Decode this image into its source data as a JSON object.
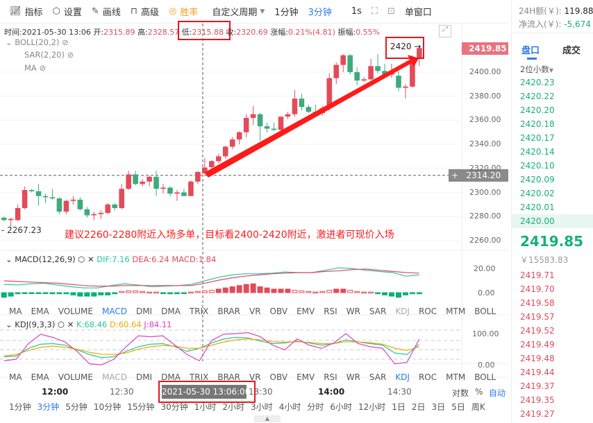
{
  "toolbar": {
    "items": [
      {
        "icon": "chart-line-icon",
        "label": "指标"
      },
      {
        "icon": "hexagon-gear-icon",
        "label": "设置"
      },
      {
        "icon": "pencil-icon",
        "label": "画线"
      },
      {
        "icon": "bag-icon",
        "label": "高级"
      },
      {
        "icon": "gauge-icon",
        "label": "胜率"
      }
    ],
    "custom_period": "自定义周期",
    "period_1": "1分钟",
    "period_3": "3分钟",
    "interval": "1s",
    "single_window": "单窗口"
  },
  "info": {
    "time_label": "时间:",
    "time": "2021-05-30 13:06",
    "open_label": "开:",
    "open": "2315.89",
    "high_label": "高:",
    "high": "2328.57",
    "low_label": "低:",
    "low": "2315.88",
    "close_label": "收:",
    "close": "2320.69",
    "change_label": "涨幅:",
    "change": "0.21%(4.81)",
    "amp_label": "振幅:",
    "amp": "0.55%"
  },
  "overlays": [
    "BOLL(20,2)",
    "SAR(2,20)",
    "MA"
  ],
  "annotation": {
    "target_label": "2420 →",
    "note": "建议2260-2280附近入场多单，目标看2400-2420附近，激进者可现价入场",
    "min_label": "- 2267.23"
  },
  "price_axis": {
    "ticks": [
      "2400.00",
      "2380.00",
      "2360.00",
      "2340.00",
      "2320.00",
      "2300.00",
      "2280.00",
      "2260.00"
    ],
    "last_price": "2419.85",
    "cross_price": "2314.20"
  },
  "colors": {
    "up": "#e24b5a",
    "down": "#3dab7d",
    "accent": "#2c7be5",
    "annotation": "#ff1a1a"
  },
  "candles": [
    [
      2279,
      2280,
      2276,
      2277
    ],
    [
      2277,
      2279,
      2270,
      2278
    ],
    [
      2277,
      2290,
      2276,
      2287
    ],
    [
      2287,
      2305,
      2286,
      2302
    ],
    [
      2302,
      2303,
      2300,
      2301
    ],
    [
      2301,
      2307,
      2289,
      2297
    ],
    [
      2297,
      2299,
      2291,
      2296
    ],
    [
      2296,
      2303,
      2294,
      2295
    ],
    [
      2295,
      2296,
      2282,
      2284
    ],
    [
      2284,
      2294,
      2282,
      2293
    ],
    [
      2293,
      2297,
      2290,
      2294
    ],
    [
      2294,
      2296,
      2285,
      2286
    ],
    [
      2286,
      2288,
      2279,
      2281
    ],
    [
      2281,
      2284,
      2277,
      2282
    ],
    [
      2282,
      2285,
      2278,
      2283
    ],
    [
      2283,
      2291,
      2282,
      2290
    ],
    [
      2290,
      2291,
      2285,
      2287
    ],
    [
      2287,
      2307,
      2286,
      2303
    ],
    [
      2303,
      2318,
      2302,
      2315
    ],
    [
      2315,
      2318,
      2306,
      2307
    ],
    [
      2307,
      2311,
      2305,
      2309
    ],
    [
      2309,
      2314,
      2305,
      2313
    ],
    [
      2313,
      2318,
      2297,
      2303
    ],
    [
      2303,
      2307,
      2299,
      2304
    ],
    [
      2304,
      2305,
      2297,
      2299
    ],
    [
      2299,
      2302,
      2293,
      2300
    ],
    [
      2300,
      2303,
      2297,
      2297
    ],
    [
      2297,
      2310,
      2297,
      2309
    ],
    [
      2309,
      2318,
      2307,
      2317
    ],
    [
      2315.89,
      2328.57,
      2315.88,
      2320.69
    ],
    [
      2321,
      2327,
      2314,
      2326
    ],
    [
      2326,
      2332,
      2324,
      2330
    ],
    [
      2330,
      2339,
      2328,
      2338
    ],
    [
      2338,
      2346,
      2336,
      2344
    ],
    [
      2344,
      2351,
      2340,
      2350
    ],
    [
      2350,
      2365,
      2346,
      2362
    ],
    [
      2362,
      2372,
      2356,
      2365
    ],
    [
      2365,
      2366,
      2343,
      2355
    ],
    [
      2355,
      2358,
      2350,
      2353
    ],
    [
      2353,
      2358,
      2351,
      2352
    ],
    [
      2352,
      2363,
      2351,
      2363
    ],
    [
      2363,
      2367,
      2361,
      2365
    ],
    [
      2365,
      2385,
      2363,
      2378
    ],
    [
      2378,
      2382,
      2368,
      2371
    ],
    [
      2371,
      2373,
      2366,
      2367
    ],
    [
      2367,
      2373,
      2365,
      2366
    ],
    [
      2366,
      2372,
      2364,
      2370
    ],
    [
      2370,
      2399,
      2368,
      2395
    ],
    [
      2395,
      2408,
      2390,
      2406
    ],
    [
      2406,
      2415,
      2400,
      2414
    ],
    [
      2414,
      2415,
      2398,
      2400
    ],
    [
      2400,
      2404,
      2389,
      2393
    ],
    [
      2393,
      2396,
      2392,
      2394
    ],
    [
      2394,
      2411,
      2393,
      2405
    ],
    [
      2405,
      2415,
      2399,
      2401
    ],
    [
      2401,
      2407,
      2396,
      2398
    ],
    [
      2398,
      2407,
      2395,
      2400
    ],
    [
      2397,
      2401,
      2384,
      2387
    ],
    [
      2387,
      2390,
      2378,
      2388
    ],
    [
      2388,
      2414,
      2387,
      2408
    ],
    [
      2411,
      2421,
      2405,
      2420
    ]
  ],
  "macd": {
    "label": "MACD(12,26,9)",
    "dif": "DIF:7.16",
    "dea": "DEA:6.24",
    "macd": "MACD:1.84",
    "ticks": [
      "20.00",
      "0.00"
    ],
    "dif_values": [
      7,
      6.5,
      7.5,
      8,
      6.5,
      5,
      4,
      4,
      6,
      7.5,
      6.5,
      5,
      5.5,
      6,
      7,
      10,
      13,
      15,
      16,
      16,
      16.5,
      17.5,
      17,
      17,
      19,
      21,
      20.5,
      19,
      18,
      17,
      14,
      15
    ],
    "dea_values": [
      10,
      9.5,
      9,
      8.5,
      8,
      7,
      6,
      5.5,
      5.5,
      6,
      6,
      6,
      6,
      6,
      6,
      8,
      10.5,
      12.5,
      14,
      15,
      16,
      16.5,
      17,
      17,
      18,
      18.5,
      19.5,
      20,
      19,
      18,
      17,
      16.5
    ],
    "hist": [
      -4,
      -3,
      -1,
      -0.5,
      -0.5,
      -0.5,
      -0.5,
      -1,
      -1,
      -1,
      -2,
      -3,
      -3,
      -3,
      -2,
      -2,
      -1,
      1,
      1.5,
      1.5,
      1,
      0.5,
      0.5,
      -0.5,
      -1,
      -1,
      -0.5,
      0.5,
      1,
      1.5,
      2,
      3,
      4,
      5,
      6,
      7,
      7.5,
      5,
      4,
      3,
      3,
      3,
      2,
      1.5,
      1,
      0.5,
      1,
      2,
      3,
      3,
      2,
      1,
      0.5,
      0.5,
      -1,
      -2,
      -3,
      -4,
      -2,
      -1,
      -1
    ]
  },
  "kdj": {
    "label": "KDJ(9,3,3)",
    "k": "K:68.46",
    "d": "D:60.64",
    "j": "J:84.11",
    "ticks": [
      "100.00",
      "0.00"
    ],
    "k_values": [
      28,
      30,
      55,
      68,
      70,
      65,
      50,
      35,
      25,
      28,
      45,
      60,
      68,
      70,
      60,
      45,
      55,
      72,
      85,
      90,
      88,
      78,
      70,
      72,
      78,
      72,
      65,
      70,
      82,
      75,
      70,
      65,
      40,
      35,
      68
    ],
    "d_values": [
      30,
      35,
      48,
      58,
      62,
      58,
      52,
      42,
      36,
      35,
      40,
      52,
      60,
      64,
      62,
      55,
      55,
      65,
      75,
      82,
      85,
      82,
      76,
      75,
      76,
      74,
      70,
      70,
      76,
      75,
      73,
      68,
      55,
      48,
      60
    ],
    "j_values": [
      15,
      20,
      70,
      100,
      90,
      75,
      45,
      5,
      2,
      20,
      60,
      95,
      92,
      95,
      65,
      35,
      15,
      80,
      100,
      102,
      105,
      92,
      65,
      50,
      85,
      65,
      55,
      72,
      102,
      70,
      60,
      55,
      5,
      10,
      84
    ]
  },
  "indicator_tabs": [
    "MA",
    "EMA",
    "VOLUME",
    "MACD",
    "DMI",
    "DMA",
    "TRIX",
    "BRAR",
    "VR",
    "OBV",
    "EMV",
    "RSI",
    "WR",
    "SAR",
    "KDJ",
    "ROC",
    "MTM",
    "BOLL"
  ],
  "time_axis": {
    "ticks": [
      "12:00",
      "12:30",
      "13:00",
      "13:30",
      "14:00",
      "14:30"
    ],
    "cross_time": "2021-05-30 13:06:00",
    "log": "对数",
    "pct": "%",
    "auto": "自动"
  },
  "periods": [
    "1分钟",
    "3分钟",
    "5分钟",
    "10分钟",
    "15分钟",
    "30分钟",
    "1小时",
    "2小时",
    "3小时",
    "4小时",
    "分时",
    "6小时",
    "12小时",
    "1日",
    "2日",
    "3日",
    "5日",
    "周K"
  ],
  "right": {
    "vol_label": "24H额(￥):",
    "vol": "119.88",
    "flow_label": "净流入(￥):",
    "flow": "-5,674",
    "tab_book": "盘口",
    "tab_trades": "成交",
    "decimals": "2位小数",
    "asks": [
      "2420.23",
      "2420.22",
      "2420.20",
      "2420.18",
      "2420.17",
      "2420.14",
      "2420.10",
      "2420.09",
      "2420.02",
      "2420.01",
      "2420.00"
    ],
    "last": "2419.85",
    "last_cny": "￥15583.83",
    "bids": [
      "2419.71",
      "2419.70",
      "2419.58",
      "2419.57",
      "2419.52",
      "2419.49",
      "2419.48",
      "2419.44",
      "2419.37",
      "2419.35",
      "2419.27"
    ]
  }
}
